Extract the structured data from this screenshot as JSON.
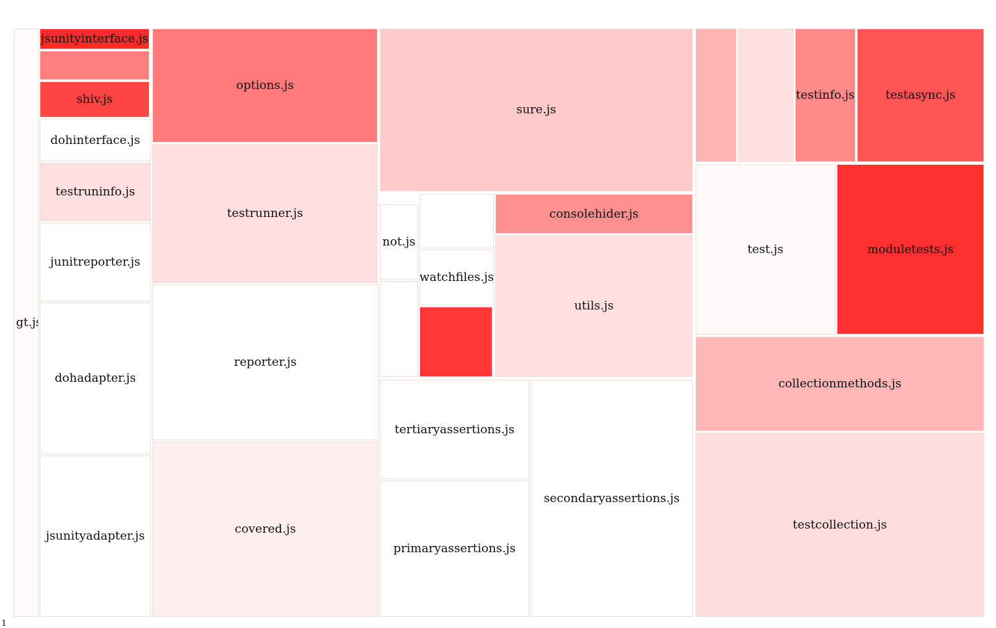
{
  "chart_data": {
    "type": "treemap",
    "title": "",
    "color_scale": {
      "low": "#ffffff",
      "high": "#ff2a2a"
    },
    "leaves": [
      {
        "id": "gt",
        "label": "gt.js",
        "intensity": 0.02
      },
      {
        "id": "jsunityinterface",
        "label": "jsunityinterface.js",
        "intensity": 1.0
      },
      {
        "id": "unlabeled-1",
        "label": "",
        "intensity": 0.6
      },
      {
        "id": "shiv",
        "label": "shiv.js",
        "intensity": 0.88
      },
      {
        "id": "dohinterface",
        "label": "dohinterface.js",
        "intensity": 0.0
      },
      {
        "id": "testruninfo",
        "label": "testruninfo.js",
        "intensity": 0.15
      },
      {
        "id": "junitreporter",
        "label": "junitreporter.js",
        "intensity": 0.0
      },
      {
        "id": "dohadapter",
        "label": "dohadapter.js",
        "intensity": 0.0
      },
      {
        "id": "jsunityadapter",
        "label": "jsunityadapter.js",
        "intensity": 0.0
      },
      {
        "id": "options",
        "label": "options.js",
        "intensity": 0.62
      },
      {
        "id": "testrunner",
        "label": "testrunner.js",
        "intensity": 0.15
      },
      {
        "id": "reporter",
        "label": "reporter.js",
        "intensity": 0.0
      },
      {
        "id": "covered",
        "label": "covered.js",
        "intensity": 0.08
      },
      {
        "id": "sure",
        "label": "sure.js",
        "intensity": 0.25
      },
      {
        "id": "not",
        "label": "not.js",
        "intensity": 0.0
      },
      {
        "id": "unlabeled-2",
        "label": "",
        "intensity": 0.0
      },
      {
        "id": "unlabeled-3",
        "label": "",
        "intensity": 0.0
      },
      {
        "id": "watchfiles",
        "label": "watchfiles.js",
        "intensity": 0.0
      },
      {
        "id": "unlabeled-4",
        "label": "",
        "intensity": 0.94
      },
      {
        "id": "consolehider",
        "label": "consolehider.js",
        "intensity": 0.52
      },
      {
        "id": "utils",
        "label": "utils.js",
        "intensity": 0.15
      },
      {
        "id": "tertiaryassertions",
        "label": "tertiaryassertions.js",
        "intensity": 0.0
      },
      {
        "id": "primaryassertions",
        "label": "primaryassertions.js",
        "intensity": 0.0
      },
      {
        "id": "secondaryassertions",
        "label": "secondaryassertions.js",
        "intensity": 0.0
      },
      {
        "id": "unlabeled-5",
        "label": "",
        "intensity": 0.35
      },
      {
        "id": "unlabeled-6",
        "label": "",
        "intensity": 0.14
      },
      {
        "id": "testinfo",
        "label": "testinfo.js",
        "intensity": 0.55
      },
      {
        "id": "testasync",
        "label": "testasync.js",
        "intensity": 0.8
      },
      {
        "id": "test",
        "label": "test.js",
        "intensity": 0.03
      },
      {
        "id": "moduletests",
        "label": "moduletests.js",
        "intensity": 0.97
      },
      {
        "id": "collectionmethods",
        "label": "collectionmethods.js",
        "intensity": 0.34
      },
      {
        "id": "testcollection",
        "label": "testcollection.js",
        "intensity": 0.16
      }
    ]
  },
  "corner_text": "1"
}
